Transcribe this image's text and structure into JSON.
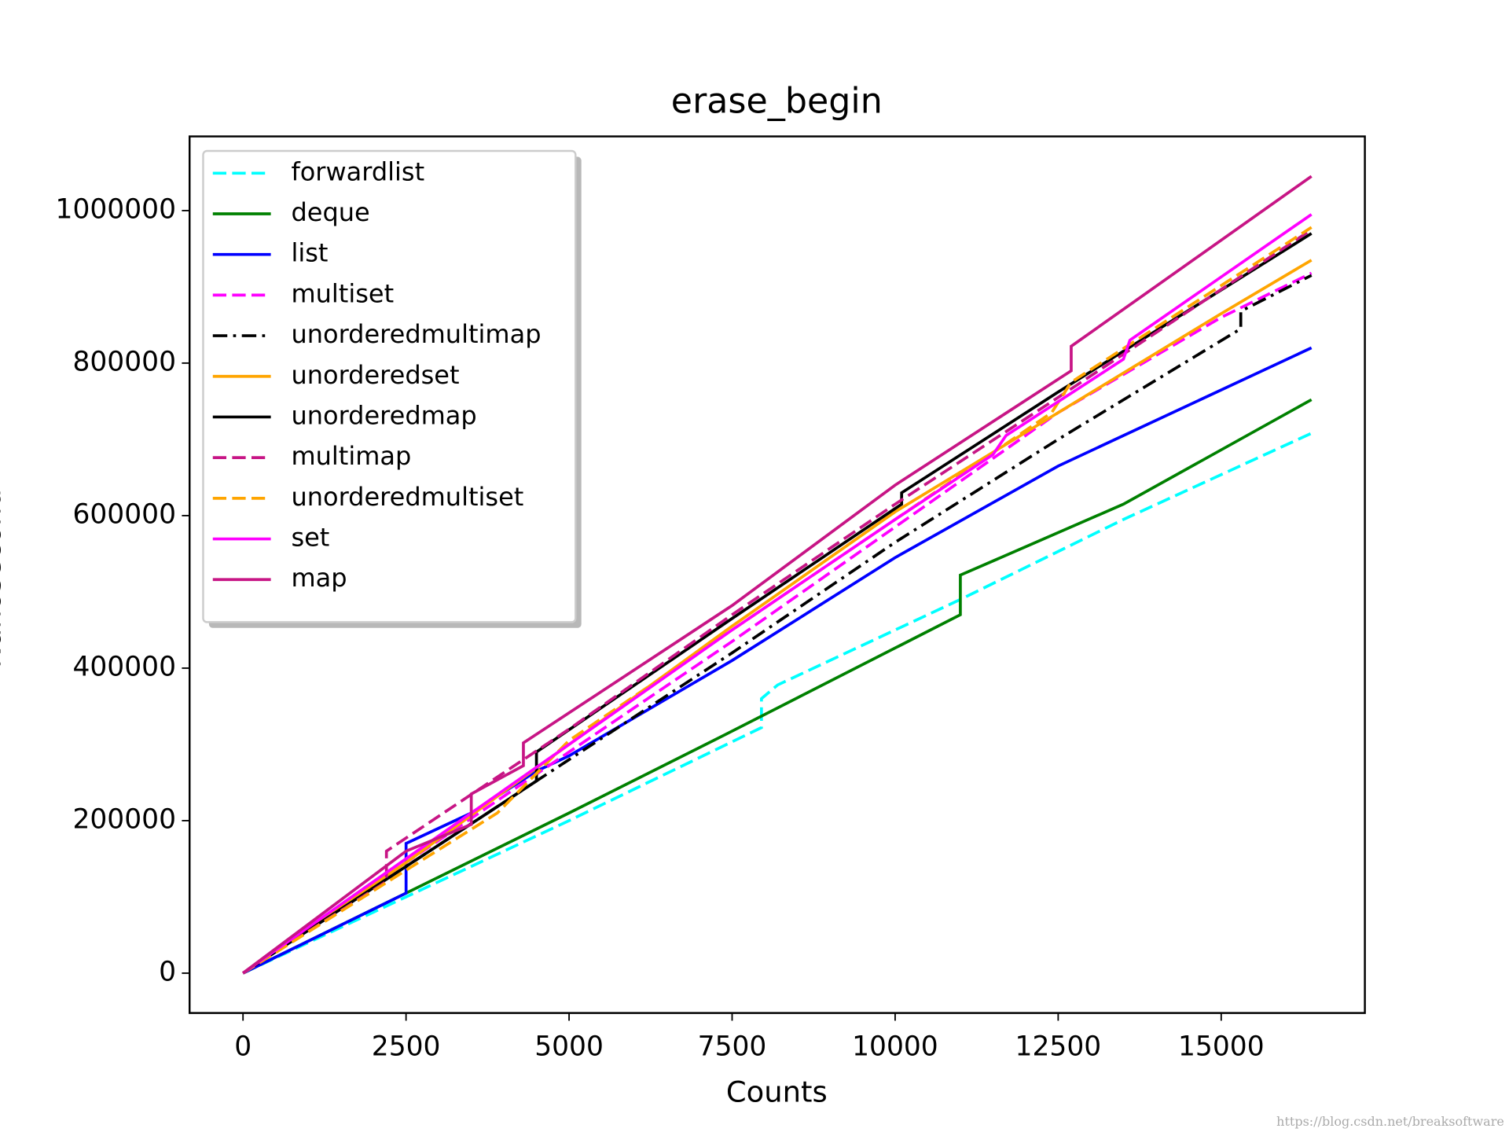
{
  "chart_data": {
    "type": "line",
    "title": "erase_begin",
    "xlabel": "Counts",
    "ylabel": "Nanosecond",
    "watermark": "https://blog.csdn.net/breaksoftware",
    "xlim": [
      -819,
      17203
    ],
    "xticks": [
      0,
      2500,
      5000,
      7500,
      10000,
      12500,
      15000
    ],
    "ylim": [
      -52250,
      1097250
    ],
    "yticks": [
      0,
      200000,
      400000,
      600000,
      800000,
      1000000
    ],
    "legend": "upper left",
    "series": [
      {
        "name": "forwardlist",
        "color": "#00ffff",
        "linestyle": "--",
        "x": [
          0,
          2500,
          5000,
          7950,
          7950,
          8200,
          11000,
          13500,
          16384
        ],
        "values": [
          0,
          100000,
          200000,
          322000,
          360000,
          378000,
          490000,
          595000,
          708000
        ]
      },
      {
        "name": "deque",
        "color": "#008000",
        "linestyle": "-",
        "x": [
          0,
          2500,
          5000,
          7400,
          11000,
          11000,
          11300,
          13500,
          16384
        ],
        "values": [
          0,
          105000,
          210000,
          313000,
          470000,
          522000,
          533000,
          615000,
          752000
        ]
      },
      {
        "name": "list",
        "color": "#0000ff",
        "linestyle": "-",
        "x": [
          0,
          2500,
          2500,
          3500,
          4500,
          5000,
          7500,
          10000,
          12500,
          16384
        ],
        "values": [
          0,
          105000,
          170000,
          210000,
          265000,
          285000,
          410000,
          545000,
          665000,
          820000
        ]
      },
      {
        "name": "multiset",
        "color": "#ff00ff",
        "linestyle": "--",
        "x": [
          0,
          2500,
          5000,
          7500,
          10000,
          12500,
          15000,
          16384
        ],
        "values": [
          0,
          145000,
          290000,
          435000,
          585000,
          735000,
          860000,
          918000
        ]
      },
      {
        "name": "unorderedmultimap",
        "color": "#000000",
        "linestyle": "-.",
        "x": [
          0,
          2500,
          5000,
          7500,
          10000,
          12500,
          15300,
          15300,
          16384
        ],
        "values": [
          0,
          140000,
          280000,
          420000,
          565000,
          700000,
          845000,
          868000,
          915000
        ]
      },
      {
        "name": "unorderedset",
        "color": "#ffa500",
        "linestyle": "-",
        "x": [
          0,
          2500,
          5000,
          7500,
          10000,
          12500,
          15000,
          16384
        ],
        "values": [
          0,
          145000,
          300000,
          455000,
          605000,
          735000,
          865000,
          935000
        ]
      },
      {
        "name": "unorderedmap",
        "color": "#000000",
        "linestyle": "-",
        "x": [
          0,
          2500,
          4500,
          4500,
          7500,
          10100,
          10100,
          12500,
          16384
        ],
        "values": [
          0,
          140000,
          252000,
          290000,
          465000,
          615000,
          630000,
          762000,
          970000
        ]
      },
      {
        "name": "multimap",
        "color": "#c71585",
        "linestyle": "--",
        "x": [
          0,
          2200,
          2200,
          5000,
          7500,
          10000,
          12500,
          16384
        ],
        "values": [
          0,
          120000,
          160000,
          320000,
          470000,
          615000,
          755000,
          975000
        ]
      },
      {
        "name": "unorderedmultiset",
        "color": "#ffa500",
        "linestyle": "--",
        "x": [
          0,
          2500,
          3900,
          5000,
          7500,
          10000,
          12400,
          12700,
          16384
        ],
        "values": [
          0,
          135000,
          210000,
          305000,
          450000,
          595000,
          735000,
          775000,
          978000
        ]
      },
      {
        "name": "set",
        "color": "#ff00ff",
        "linestyle": "-",
        "x": [
          0,
          2500,
          5000,
          7500,
          10000,
          11500,
          11700,
          13500,
          13600,
          16384
        ],
        "values": [
          0,
          150000,
          300000,
          450000,
          595000,
          680000,
          705000,
          805000,
          830000,
          995000
        ]
      },
      {
        "name": "map",
        "color": "#c71585",
        "linestyle": "-",
        "x": [
          0,
          2500,
          3500,
          3500,
          4300,
          4300,
          7500,
          10000,
          12700,
          12700,
          16384
        ],
        "values": [
          0,
          160000,
          195000,
          235000,
          272000,
          302000,
          482000,
          640000,
          790000,
          822000,
          1045000
        ]
      }
    ]
  }
}
